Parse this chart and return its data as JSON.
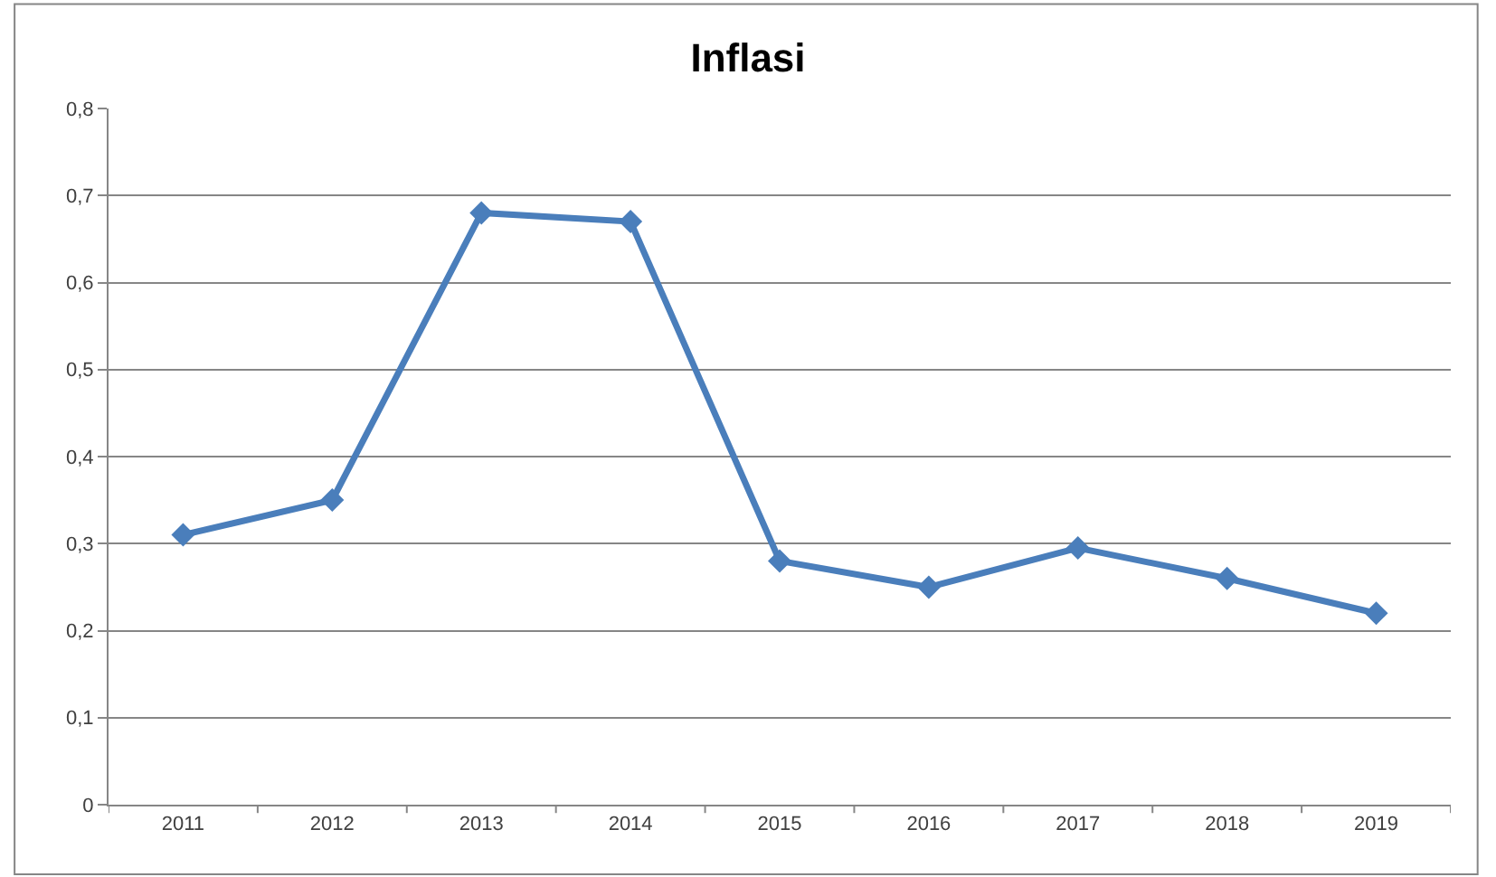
{
  "chart_data": {
    "type": "line",
    "title": "Inflasi",
    "categories": [
      "2011",
      "2012",
      "2013",
      "2014",
      "2015",
      "2016",
      "2017",
      "2018",
      "2019"
    ],
    "series": [
      {
        "color": "#4a7ebb",
        "values": [
          0.31,
          0.35,
          0.68,
          0.67,
          0.28,
          0.25,
          0.295,
          0.26,
          0.22
        ]
      }
    ],
    "ylim": [
      0,
      0.8
    ],
    "yticks": [
      0,
      {
        "value": 0.1,
        "label": "0,1"
      },
      {
        "value": 0.2,
        "label": "0,2"
      },
      {
        "value": 0.3,
        "label": "0,3"
      },
      {
        "value": 0.4,
        "label": "0,4"
      },
      {
        "value": 0.5,
        "label": "0,5"
      },
      {
        "value": 0.6,
        "label": "0,6"
      },
      {
        "value": 0.7,
        "label": "0,7"
      },
      {
        "value": 0.8,
        "label": "0,8"
      }
    ],
    "grid": "y",
    "marker": "diamond",
    "line_style": "solid",
    "legend": false
  }
}
